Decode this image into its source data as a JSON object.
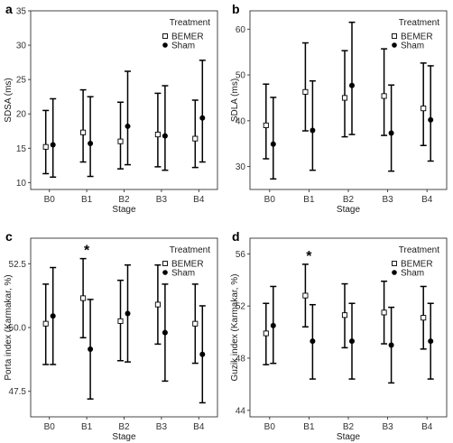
{
  "chart_data": [
    {
      "panel": "a",
      "type": "scatter",
      "categories": [
        "B0",
        "B1",
        "B2",
        "B3",
        "B4"
      ],
      "xlabel": "Stage",
      "ylabel": "SDSA (ms)",
      "ylim": [
        9,
        35
      ],
      "yticks": [
        10,
        15,
        20,
        25,
        30,
        35
      ],
      "yticklabels": [
        "10",
        "15",
        "20",
        "25",
        "30",
        "35"
      ],
      "grid": false,
      "legend": {
        "title": "Treatment",
        "position": "top-right"
      },
      "significance": [],
      "series": [
        {
          "name": "BEMER",
          "marker": "open-square",
          "values": [
            15.2,
            17.3,
            16.0,
            17.0,
            16.4
          ],
          "lower": [
            11.3,
            13.0,
            12.0,
            12.3,
            12.2
          ],
          "upper": [
            20.5,
            23.5,
            21.7,
            23.0,
            22.0
          ]
        },
        {
          "name": "Sham",
          "marker": "filled-circle",
          "values": [
            15.5,
            15.7,
            18.2,
            16.8,
            19.4
          ],
          "lower": [
            10.8,
            10.9,
            12.6,
            11.8,
            13.0
          ],
          "upper": [
            22.2,
            22.5,
            26.2,
            24.1,
            27.8
          ]
        }
      ]
    },
    {
      "panel": "b",
      "type": "scatter",
      "categories": [
        "B0",
        "B1",
        "B2",
        "B3",
        "B4"
      ],
      "xlabel": "Stage",
      "ylabel": "SDLA (ms)",
      "ylim": [
        25,
        64
      ],
      "yticks": [
        30,
        40,
        50,
        60
      ],
      "yticklabels": [
        "30",
        "40",
        "50",
        "60"
      ],
      "grid": false,
      "legend": {
        "title": "Treatment",
        "position": "top-right"
      },
      "significance": [],
      "series": [
        {
          "name": "BEMER",
          "marker": "open-square",
          "values": [
            39.0,
            46.3,
            45.0,
            45.4,
            42.7
          ],
          "lower": [
            31.7,
            37.8,
            36.5,
            36.8,
            34.6
          ],
          "upper": [
            48.0,
            57.0,
            55.3,
            55.7,
            52.6
          ]
        },
        {
          "name": "Sham",
          "marker": "filled-circle",
          "values": [
            34.9,
            37.9,
            47.7,
            37.3,
            40.2
          ],
          "lower": [
            27.3,
            29.2,
            37.0,
            29.0,
            31.2
          ],
          "upper": [
            45.1,
            48.7,
            61.5,
            47.8,
            52.0
          ]
        }
      ]
    },
    {
      "panel": "c",
      "type": "scatter",
      "categories": [
        "B0",
        "B1",
        "B2",
        "B3",
        "B4"
      ],
      "xlabel": "Stage",
      "ylabel": "Porta index (Karmakar, %)",
      "ylim": [
        46.5,
        53.5
      ],
      "yticks": [
        47.5,
        50.0,
        52.5
      ],
      "yticklabels": [
        "47.5",
        "50.0",
        "52.5"
      ],
      "grid": false,
      "legend": {
        "title": "Treatment",
        "position": "top-right"
      },
      "significance": [
        {
          "category": "B1",
          "label": "*"
        }
      ],
      "series": [
        {
          "name": "BEMER",
          "marker": "open-square",
          "values": [
            50.15,
            51.15,
            50.25,
            50.9,
            50.15
          ],
          "lower": [
            48.55,
            49.6,
            48.7,
            49.35,
            48.6
          ],
          "upper": [
            51.7,
            52.7,
            51.85,
            52.45,
            51.7
          ]
        },
        {
          "name": "Sham",
          "marker": "filled-circle",
          "values": [
            50.45,
            49.15,
            50.55,
            49.8,
            48.95
          ],
          "lower": [
            48.55,
            47.2,
            48.65,
            47.9,
            47.05
          ],
          "upper": [
            52.35,
            51.1,
            52.45,
            51.7,
            50.85
          ]
        }
      ]
    },
    {
      "panel": "d",
      "type": "scatter",
      "categories": [
        "B0",
        "B1",
        "B2",
        "B3",
        "B4"
      ],
      "xlabel": "Stage",
      "ylabel": "Guzik index (Karmakar, %)",
      "ylim": [
        43.5,
        57.2
      ],
      "yticks": [
        44,
        48,
        52,
        56
      ],
      "yticklabels": [
        "44",
        "48",
        "52",
        "56"
      ],
      "grid": false,
      "legend": {
        "title": "Treatment",
        "position": "top-right"
      },
      "significance": [
        {
          "category": "B1",
          "label": "*"
        }
      ],
      "series": [
        {
          "name": "BEMER",
          "marker": "open-square",
          "values": [
            49.9,
            52.8,
            51.3,
            51.5,
            51.1
          ],
          "lower": [
            47.5,
            50.4,
            48.8,
            49.1,
            48.7
          ],
          "upper": [
            52.2,
            55.2,
            53.7,
            53.9,
            53.5
          ]
        },
        {
          "name": "Sham",
          "marker": "filled-circle",
          "values": [
            50.5,
            49.3,
            49.3,
            49.0,
            49.3
          ],
          "lower": [
            47.6,
            46.4,
            46.4,
            46.1,
            46.4
          ],
          "upper": [
            53.5,
            52.1,
            52.2,
            51.9,
            52.2
          ]
        }
      ]
    }
  ]
}
